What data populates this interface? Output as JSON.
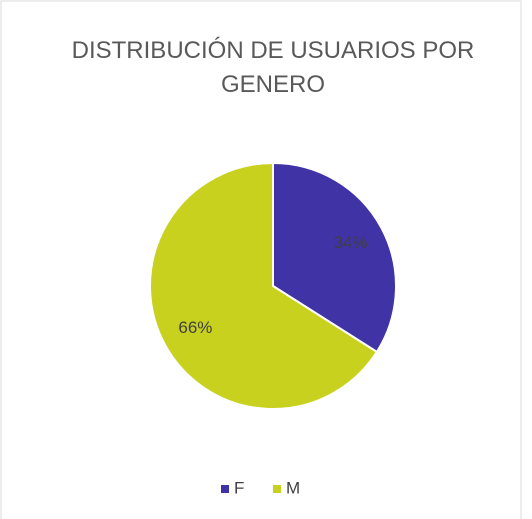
{
  "chart_data": {
    "type": "pie",
    "title": "DISTRIBUCIÓN DE USUARIOS POR GENERO",
    "categories": [
      "F",
      "M"
    ],
    "values": [
      34,
      66
    ],
    "value_labels": [
      "34%",
      "66%"
    ],
    "colors": [
      "#3f33a6",
      "#c8d11e"
    ],
    "legend": "bottom"
  }
}
